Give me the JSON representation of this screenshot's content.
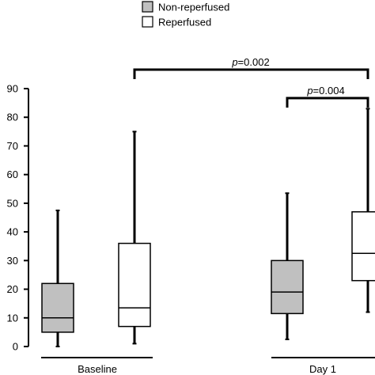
{
  "chart_data": {
    "type": "box",
    "ylim": [
      0,
      90
    ],
    "yticks": [
      "0",
      "10",
      "20",
      "30",
      "40",
      "50",
      "60",
      "70",
      "80",
      "90"
    ],
    "groups": [
      "Baseline",
      "Day 1"
    ],
    "series": [
      {
        "name": "Non-reperfused",
        "fill": "#c0c0c0",
        "boxes": [
          {
            "group": "Baseline",
            "min": 0,
            "q1": 5,
            "median": 10,
            "q3": 22,
            "max": 47.5
          },
          {
            "group": "Day 1",
            "min": 2.5,
            "q1": 11.5,
            "median": 19,
            "q3": 30,
            "max": 53.5
          }
        ]
      },
      {
        "name": "Reperfused",
        "fill": "#ffffff",
        "boxes": [
          {
            "group": "Baseline",
            "min": 1,
            "q1": 7,
            "median": 13.5,
            "q3": 36,
            "max": 75
          },
          {
            "group": "Day 1",
            "min": 12,
            "q1": 23,
            "median": 32.5,
            "q3": 47,
            "max": 83
          }
        ]
      }
    ],
    "annotations": [
      {
        "prefix": "p",
        "text": "=0.002",
        "from": "Baseline / Reperfused",
        "to": "Day 1 / Reperfused"
      },
      {
        "prefix": "p",
        "text": "=0.004",
        "from": "Day 1 / Non-reperfused",
        "to": "Day 1 / Reperfused"
      }
    ],
    "legend_position": "top-center"
  }
}
